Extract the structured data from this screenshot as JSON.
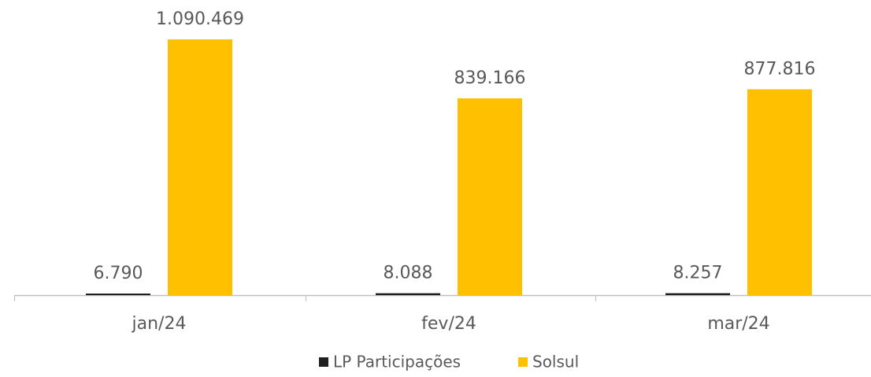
{
  "chart_data": {
    "type": "bar",
    "categories": [
      "jan/24",
      "fev/24",
      "mar/24"
    ],
    "series": [
      {
        "name": "LP Participações",
        "color": "#1f1f1f",
        "values": [
          6790,
          8088,
          8257
        ],
        "value_labels": [
          "6.790",
          "8.088",
          "8.257"
        ]
      },
      {
        "name": "Solsul",
        "color": "#ffc000",
        "values": [
          1090469,
          839166,
          877816
        ],
        "value_labels": [
          "1.090.469",
          "839.166",
          "877.816"
        ]
      }
    ],
    "ylim": [
      0,
      1200000
    ],
    "legend": "bottom"
  }
}
